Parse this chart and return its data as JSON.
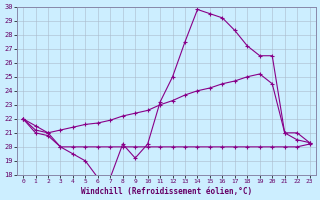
{
  "xlabel": "Windchill (Refroidissement éolien,°C)",
  "x": [
    0,
    1,
    2,
    3,
    4,
    5,
    6,
    7,
    8,
    9,
    10,
    11,
    12,
    13,
    14,
    15,
    16,
    17,
    18,
    19,
    20,
    21,
    22,
    23
  ],
  "line1": [
    22.0,
    21.5,
    21.0,
    20.0,
    19.5,
    19.0,
    17.8,
    17.8,
    20.2,
    19.2,
    20.2,
    23.2,
    25.0,
    27.5,
    29.8,
    29.5,
    29.2,
    28.3,
    27.2,
    26.5,
    26.5,
    21.0,
    20.5,
    20.3
  ],
  "line2": [
    22.0,
    21.0,
    20.8,
    20.0,
    20.0,
    20.0,
    20.0,
    20.0,
    20.0,
    20.0,
    20.0,
    20.0,
    20.0,
    20.0,
    20.0,
    20.0,
    20.0,
    20.0,
    20.0,
    20.0,
    20.0,
    20.0,
    20.0,
    20.2
  ],
  "line3": [
    22.0,
    21.2,
    21.0,
    21.2,
    21.4,
    21.6,
    21.7,
    21.9,
    22.2,
    22.4,
    22.6,
    23.0,
    23.3,
    23.7,
    24.0,
    24.2,
    24.5,
    24.7,
    25.0,
    25.2,
    24.5,
    21.0,
    21.0,
    20.3
  ],
  "bg_color": "#cceeff",
  "line_color": "#880088",
  "grid_color": "#aabbcc",
  "ylim": [
    18,
    30
  ],
  "yticks": [
    18,
    19,
    20,
    21,
    22,
    23,
    24,
    25,
    26,
    27,
    28,
    29,
    30
  ],
  "xticks": [
    0,
    1,
    2,
    3,
    4,
    5,
    6,
    7,
    8,
    9,
    10,
    11,
    12,
    13,
    14,
    15,
    16,
    17,
    18,
    19,
    20,
    21,
    22,
    23
  ],
  "tick_fontsize": 5,
  "xlabel_fontsize": 5.5
}
